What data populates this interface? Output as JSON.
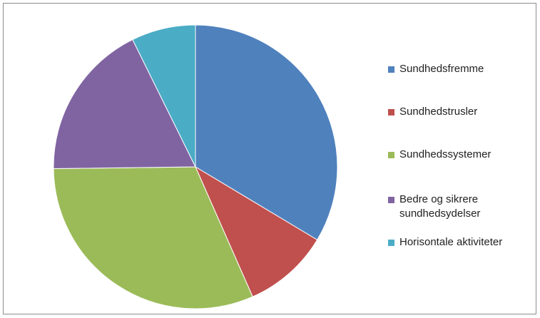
{
  "chart_data": {
    "type": "pie",
    "title": "",
    "start_angle_deg": 0,
    "direction": "clockwise",
    "legend_position": "right",
    "series": [
      {
        "name": "Sundhedsfremme",
        "value": 33.6,
        "color": "#4F81BD"
      },
      {
        "name": "Sundhedstrusler",
        "value": 9.8,
        "color": "#C0504D"
      },
      {
        "name": "Sundhedssystemer",
        "value": 31.4,
        "color": "#9BBB59"
      },
      {
        "name": "Bedre og sikrere\nsundhedsydelser",
        "value": 17.9,
        "color": "#8064A2"
      },
      {
        "name": "Horisontale aktiviteter",
        "value": 7.3,
        "color": "#4BACC6"
      }
    ]
  }
}
